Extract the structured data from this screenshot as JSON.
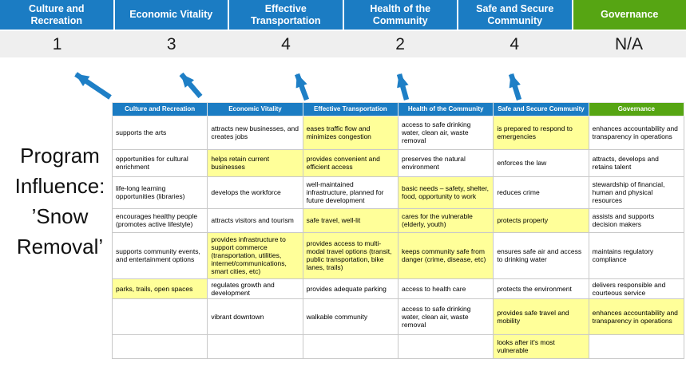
{
  "title": "Program Influence: ’Snow Removal’",
  "colors": {
    "header_blue": "#1B7CC3",
    "header_green": "#56A513",
    "highlight": "#FFFF99",
    "score_band": "#EFEFEF",
    "arrow": "#1E7FC6"
  },
  "scoreboard": {
    "columns": [
      {
        "label": "Culture and Recreation",
        "score": "1",
        "color": "blue"
      },
      {
        "label": "Economic Vitality",
        "score": "3",
        "color": "blue"
      },
      {
        "label": "Effective Transportation",
        "score": "4",
        "color": "blue"
      },
      {
        "label": "Health of the Community",
        "score": "2",
        "color": "blue"
      },
      {
        "label": "Safe and Secure Community",
        "score": "4",
        "color": "blue"
      },
      {
        "label": "Governance",
        "score": "N/A",
        "color": "green"
      }
    ]
  },
  "matrix": {
    "headers": [
      {
        "label": "Culture and Recreation",
        "color": "blue"
      },
      {
        "label": "Economic Vitality",
        "color": "blue"
      },
      {
        "label": "Effective Transportation",
        "color": "blue"
      },
      {
        "label": "Health of the Community",
        "color": "blue"
      },
      {
        "label": "Safe and Secure Community",
        "color": "blue"
      },
      {
        "label": "Governance",
        "color": "green"
      }
    ],
    "rows": [
      [
        {
          "text": "supports the arts",
          "hl": false
        },
        {
          "text": "attracts new businesses, and creates jobs",
          "hl": false
        },
        {
          "text": "eases traffic flow and minimizes congestion",
          "hl": true
        },
        {
          "text": "access to safe drinking water, clean air, waste removal",
          "hl": false
        },
        {
          "text": "is prepared to respond to emergencies",
          "hl": true
        },
        {
          "text": "enhances accountability and transparency in operations",
          "hl": false
        }
      ],
      [
        {
          "text": "opportunities for cultural enrichment",
          "hl": false
        },
        {
          "text": "helps retain current businesses",
          "hl": true
        },
        {
          "text": "provides convenient and efficient access",
          "hl": true
        },
        {
          "text": "preserves the natural environment",
          "hl": false
        },
        {
          "text": "enforces the law",
          "hl": false
        },
        {
          "text": "attracts, develops and retains talent",
          "hl": false
        }
      ],
      [
        {
          "text": "life-long learning opportunities (libraries)",
          "hl": false
        },
        {
          "text": "develops the workforce",
          "hl": false
        },
        {
          "text": "well-maintained infrastructure, planned for future development",
          "hl": false
        },
        {
          "text": "basic needs – safety, shelter, food, opportunity to work",
          "hl": true
        },
        {
          "text": "reduces crime",
          "hl": false
        },
        {
          "text": "stewardship of financial, human and physical resources",
          "hl": false
        }
      ],
      [
        {
          "text": "encourages healthy people (promotes active lifestyle)",
          "hl": false
        },
        {
          "text": "attracts visitors and tourism",
          "hl": false
        },
        {
          "text": "safe travel, well-lit",
          "hl": true
        },
        {
          "text": "cares for the vulnerable (elderly, youth)",
          "hl": true
        },
        {
          "text": "protects property",
          "hl": true
        },
        {
          "text": "assists and supports decision makers",
          "hl": false
        }
      ],
      [
        {
          "text": "supports community events, and entertainment options",
          "hl": false
        },
        {
          "text": "provides infrastructure to support commerce (transportation, utilities, internet/communications, smart cities, etc)",
          "hl": true
        },
        {
          "text": "provides access to multi-modal travel options (transit, public transportation, bike lanes, trails)",
          "hl": true
        },
        {
          "text": "keeps community safe from danger (crime, disease, etc)",
          "hl": true
        },
        {
          "text": "ensures safe air and access to drinking water",
          "hl": false
        },
        {
          "text": "maintains regulatory compliance",
          "hl": false
        }
      ],
      [
        {
          "text": "parks, trails, open spaces",
          "hl": true
        },
        {
          "text": "regulates growth and development",
          "hl": false
        },
        {
          "text": "provides adequate parking",
          "hl": false
        },
        {
          "text": "access to health care",
          "hl": false
        },
        {
          "text": "protects the environment",
          "hl": false
        },
        {
          "text": "delivers responsible and courteous service",
          "hl": false
        }
      ],
      [
        {
          "text": "",
          "hl": false
        },
        {
          "text": "vibrant downtown",
          "hl": false
        },
        {
          "text": "walkable community",
          "hl": false
        },
        {
          "text": "access to safe drinking water, clean air, waste removal",
          "hl": false
        },
        {
          "text": "provides safe travel and mobility",
          "hl": true
        },
        {
          "text": "enhances accountability and transparency in operations",
          "hl": true
        }
      ],
      [
        {
          "text": "",
          "hl": false
        },
        {
          "text": "",
          "hl": false
        },
        {
          "text": "",
          "hl": false
        },
        {
          "text": "",
          "hl": false
        },
        {
          "text": "looks after it's most vulnerable",
          "hl": true
        },
        {
          "text": "",
          "hl": false
        }
      ]
    ]
  }
}
